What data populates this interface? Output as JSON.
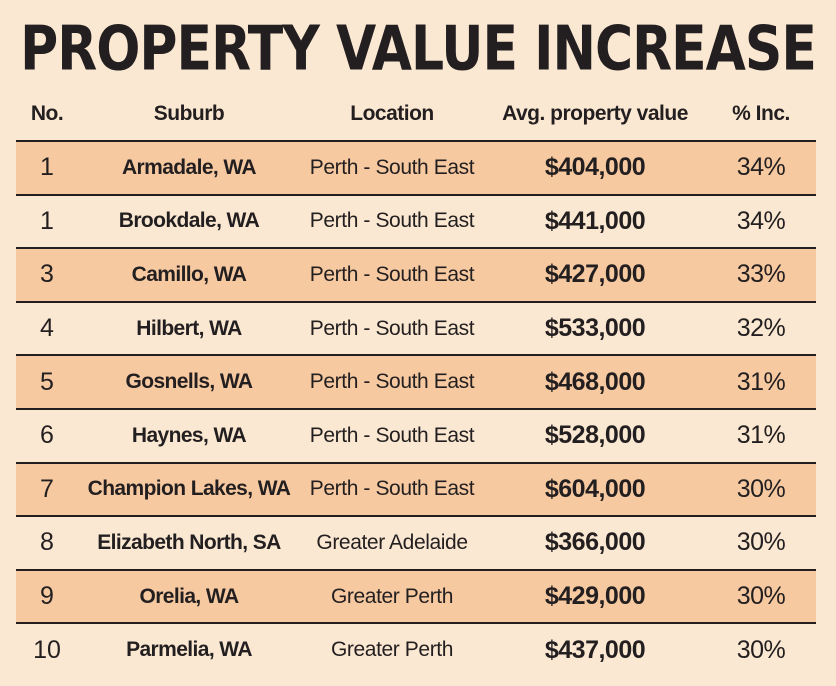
{
  "title": "PROPERTY VALUE INCREASE",
  "chart_data": {
    "type": "table",
    "columns": [
      "No.",
      "Suburb",
      "Location",
      "Avg. property value",
      "% Inc."
    ],
    "rows": [
      {
        "no": "1",
        "suburb": "Armadale, WA",
        "location": "Perth - South East",
        "value": "$404,000",
        "pct": "34%"
      },
      {
        "no": "1",
        "suburb": "Brookdale, WA",
        "location": "Perth - South East",
        "value": "$441,000",
        "pct": "34%"
      },
      {
        "no": "3",
        "suburb": "Camillo, WA",
        "location": "Perth - South East",
        "value": "$427,000",
        "pct": "33%"
      },
      {
        "no": "4",
        "suburb": "Hilbert, WA",
        "location": "Perth - South East",
        "value": "$533,000",
        "pct": "32%"
      },
      {
        "no": "5",
        "suburb": "Gosnells, WA",
        "location": "Perth - South East",
        "value": "$468,000",
        "pct": "31%"
      },
      {
        "no": "6",
        "suburb": "Haynes, WA",
        "location": "Perth - South East",
        "value": "$528,000",
        "pct": "31%"
      },
      {
        "no": "7",
        "suburb": "Champion Lakes, WA",
        "location": "Perth - South East",
        "value": "$604,000",
        "pct": "30%"
      },
      {
        "no": "8",
        "suburb": "Elizabeth North, SA",
        "location": "Greater Adelaide",
        "value": "$366,000",
        "pct": "30%"
      },
      {
        "no": "9",
        "suburb": "Orelia, WA",
        "location": "Greater Perth",
        "value": "$429,000",
        "pct": "30%"
      },
      {
        "no": "10",
        "suburb": "Parmelia, WA",
        "location": "Greater Perth",
        "value": "$437,000",
        "pct": "30%"
      }
    ]
  },
  "colors": {
    "background": "#fbe8d2",
    "row_shade": "#f6c9a0",
    "text": "#231f20"
  }
}
